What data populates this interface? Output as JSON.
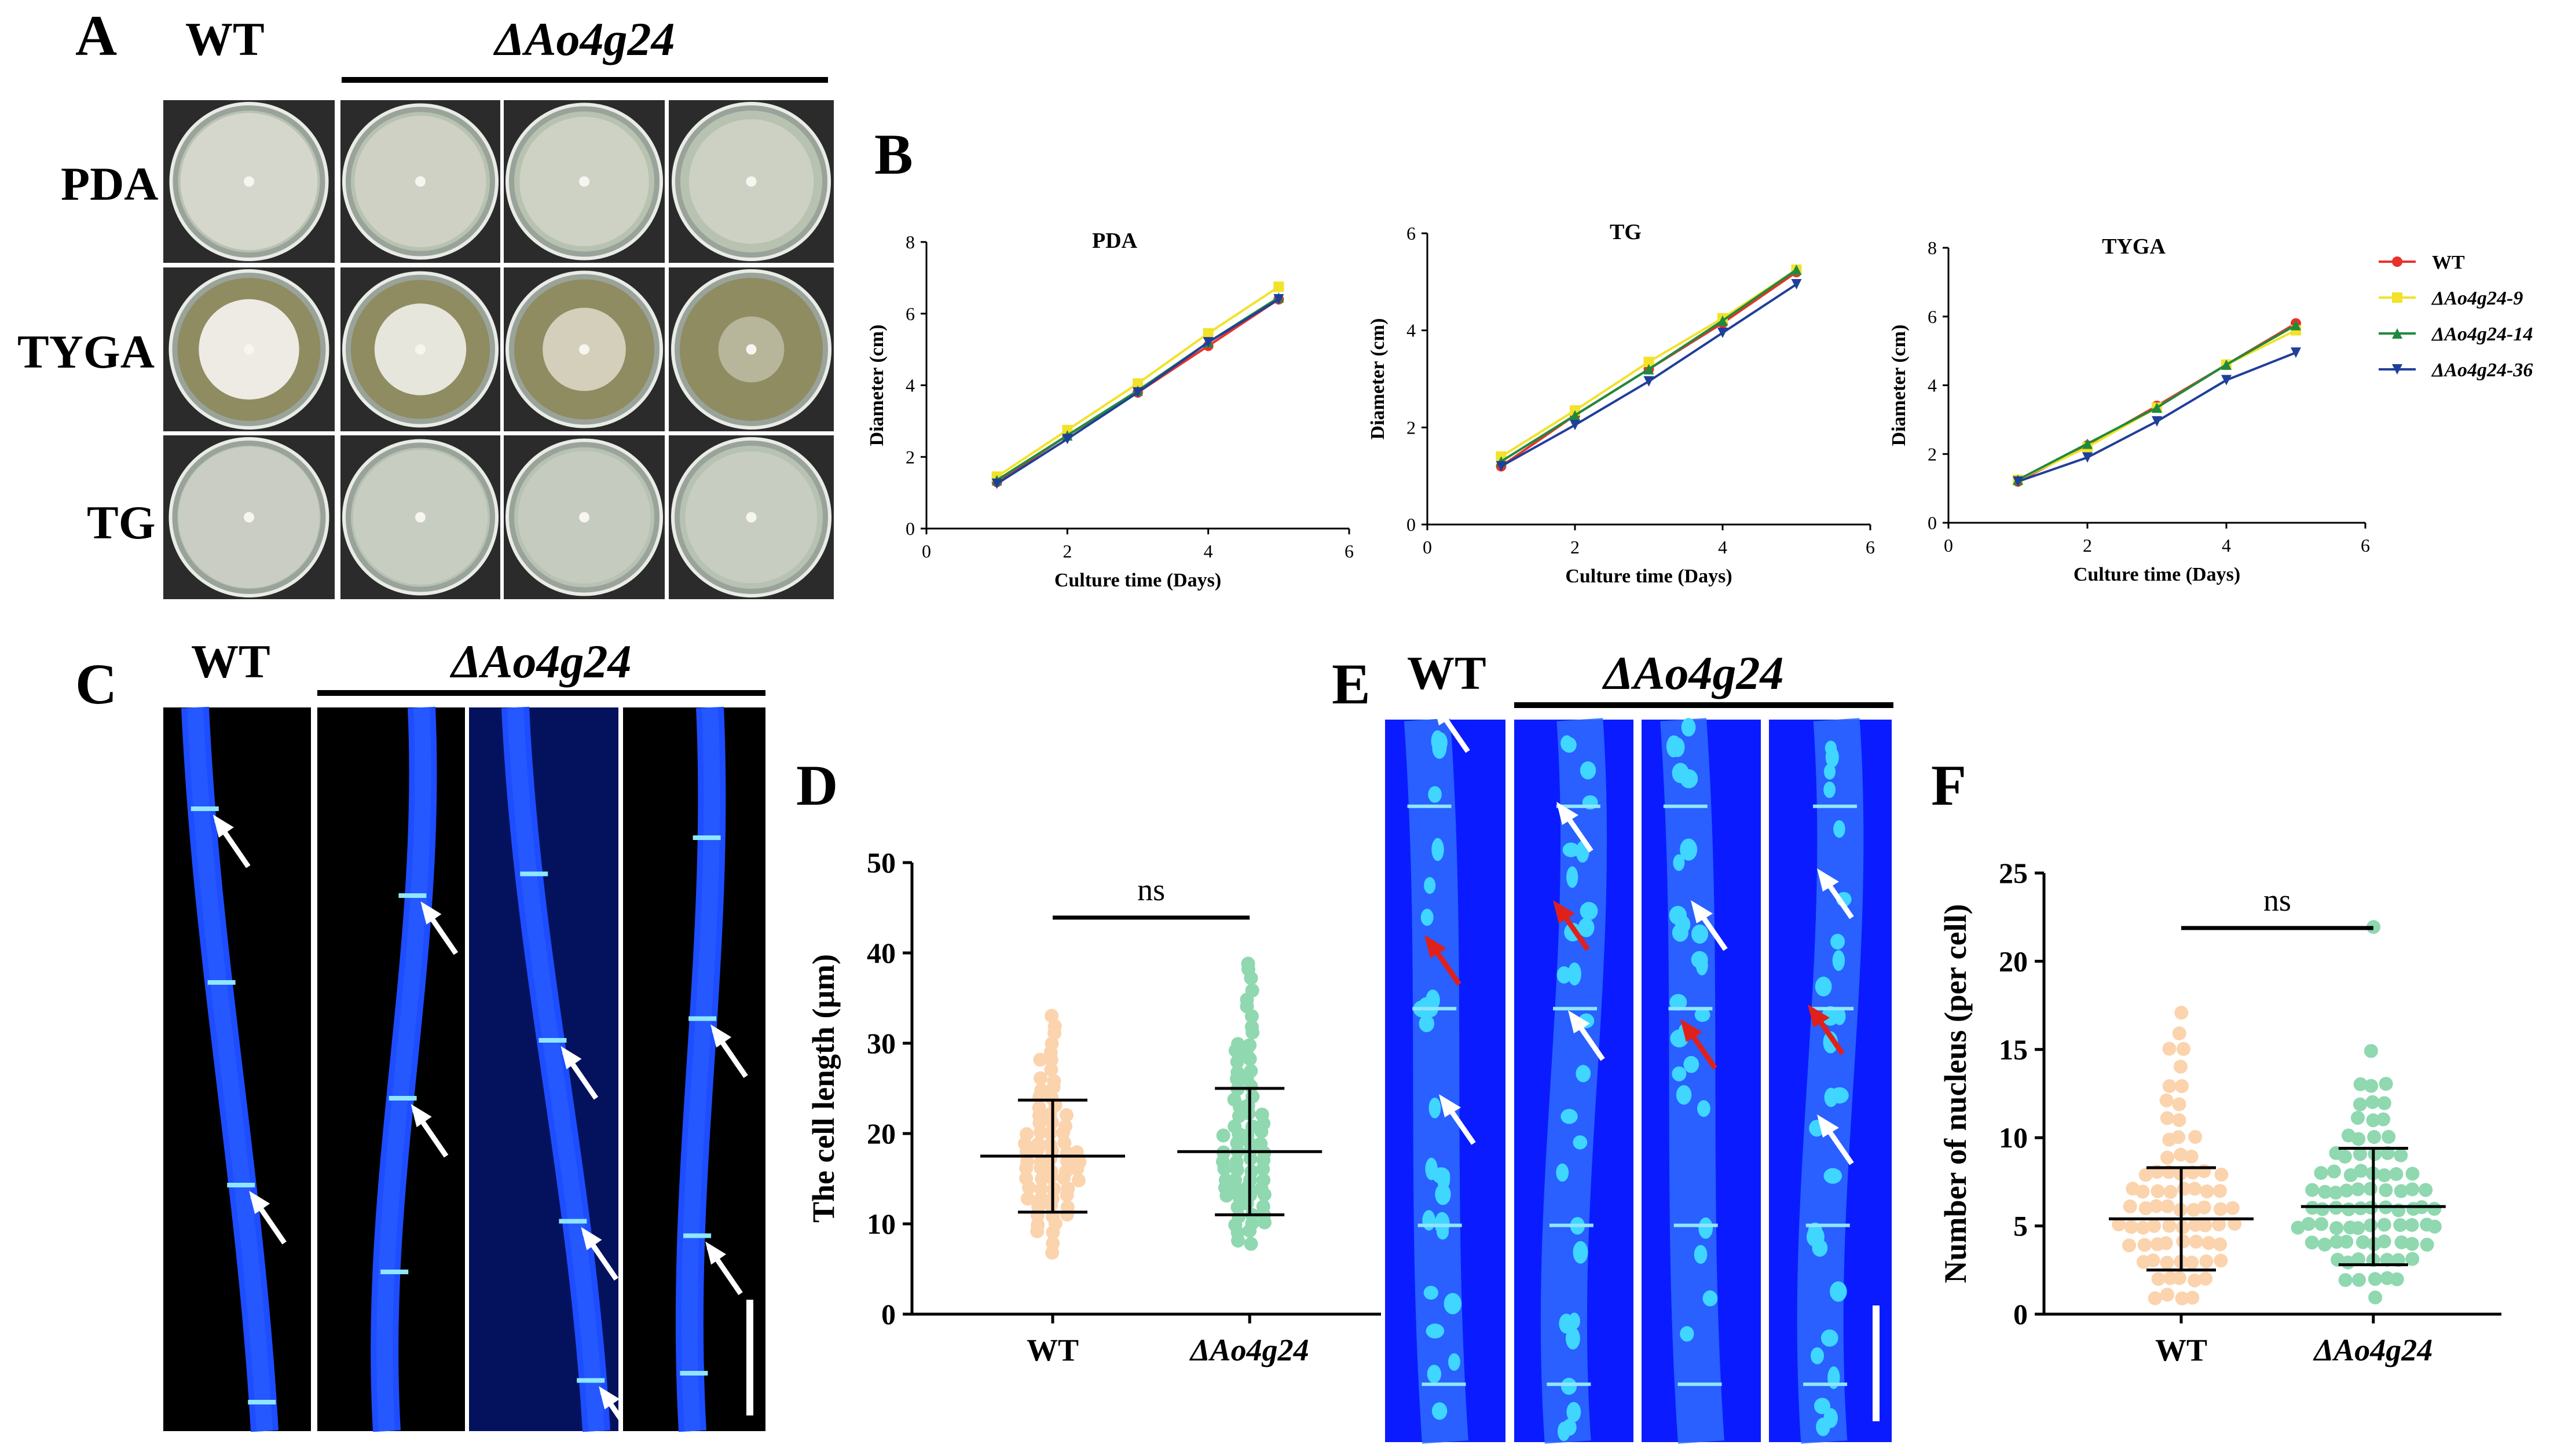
{
  "figure": {
    "panel_labels": {
      "A": "A",
      "B": "B",
      "C": "C",
      "D": "D",
      "E": "E",
      "F": "F"
    },
    "wt": "WT",
    "mutant": "ΔAo4g24",
    "media_rows": [
      "PDA",
      "TYGA",
      "TG"
    ]
  },
  "colors": {
    "plate_bg": "#2b2b2b",
    "hyphae_dark_bg": "#000000",
    "hyphae_blue": "#1d4dff",
    "nuclei_bg": "#0a1cff",
    "wt_points": "#fbd3ad",
    "mut_points": "#8fd8b0",
    "arrow_white": "#ffffff",
    "arrow_red": "#e0201b"
  },
  "chart_data": [
    {
      "id": "B-PDA",
      "type": "line",
      "title": "PDA",
      "xlabel": "Culture time (Days)",
      "ylabel": "Diameter (cm)",
      "xlim": [
        0,
        6
      ],
      "ylim": [
        0,
        8
      ],
      "xticks": [
        "0",
        "2",
        "4",
        "6"
      ],
      "yticks": [
        "0",
        "2",
        "4",
        "6",
        "8"
      ],
      "x": [
        1,
        2,
        3,
        4,
        5
      ],
      "series": [
        {
          "name": "WT",
          "color": "#e8312a",
          "marker": "circle",
          "values": [
            1.3,
            2.6,
            3.8,
            5.1,
            6.4
          ]
        },
        {
          "name": "ΔAo4g24-9",
          "color": "#f2e22a",
          "marker": "square",
          "values": [
            1.45,
            2.75,
            4.05,
            5.45,
            6.75
          ]
        },
        {
          "name": "ΔAo4g24-14",
          "color": "#1f8a3e",
          "marker": "triangle-up",
          "values": [
            1.35,
            2.6,
            3.85,
            5.2,
            6.45
          ]
        },
        {
          "name": "ΔAo4g24-36",
          "color": "#1f3f9a",
          "marker": "triangle-down",
          "values": [
            1.25,
            2.5,
            3.8,
            5.2,
            6.4
          ]
        }
      ]
    },
    {
      "id": "B-TG",
      "type": "line",
      "title": "TG",
      "xlabel": "Culture time (Days)",
      "ylabel": "Diameter (cm)",
      "xlim": [
        0,
        6
      ],
      "ylim": [
        0,
        6
      ],
      "xticks": [
        "0",
        "2",
        "4",
        "6"
      ],
      "yticks": [
        "0",
        "2",
        "4",
        "6"
      ],
      "x": [
        1,
        2,
        3,
        4,
        5
      ],
      "series": [
        {
          "name": "WT",
          "color": "#e8312a",
          "marker": "circle",
          "values": [
            1.2,
            2.25,
            3.2,
            4.15,
            5.2
          ]
        },
        {
          "name": "ΔAo4g24-9",
          "color": "#f2e22a",
          "marker": "square",
          "values": [
            1.4,
            2.35,
            3.35,
            4.25,
            5.25
          ]
        },
        {
          "name": "ΔAo4g24-14",
          "color": "#1f8a3e",
          "marker": "triangle-up",
          "values": [
            1.3,
            2.25,
            3.2,
            4.2,
            5.25
          ]
        },
        {
          "name": "ΔAo4g24-36",
          "color": "#1f3f9a",
          "marker": "triangle-down",
          "values": [
            1.2,
            2.05,
            2.95,
            3.95,
            4.95
          ]
        }
      ]
    },
    {
      "id": "B-TYGA",
      "type": "line",
      "title": "TYGA",
      "xlabel": "Culture time (Days)",
      "ylabel": "Diameter (cm)",
      "xlim": [
        0,
        6
      ],
      "ylim": [
        0,
        8
      ],
      "xticks": [
        "0",
        "2",
        "4",
        "6"
      ],
      "yticks": [
        "0",
        "2",
        "4",
        "6",
        "8"
      ],
      "x": [
        1,
        2,
        3,
        4,
        5
      ],
      "series": [
        {
          "name": "WT",
          "color": "#e8312a",
          "marker": "circle",
          "values": [
            1.2,
            2.25,
            3.4,
            4.6,
            5.8
          ]
        },
        {
          "name": "ΔAo4g24-9",
          "color": "#f2e22a",
          "marker": "square",
          "values": [
            1.25,
            2.2,
            3.35,
            4.6,
            5.6
          ]
        },
        {
          "name": "ΔAo4g24-14",
          "color": "#1f8a3e",
          "marker": "triangle-up",
          "values": [
            1.25,
            2.3,
            3.35,
            4.6,
            5.75
          ]
        },
        {
          "name": "ΔAo4g24-36",
          "color": "#1f3f9a",
          "marker": "triangle-down",
          "values": [
            1.2,
            1.9,
            2.95,
            4.15,
            4.95
          ]
        }
      ]
    },
    {
      "id": "D",
      "type": "scatter",
      "ylabel": "The cell length (μm)",
      "ylim": [
        0,
        50
      ],
      "yticks": [
        "0",
        "10",
        "20",
        "30",
        "40",
        "50"
      ],
      "categories": [
        "WT",
        "ΔAo4g24"
      ],
      "significance": "ns",
      "groups": [
        {
          "name": "WT",
          "color": "#fbd3ad",
          "mean": 17.5,
          "sd": 6.2,
          "n": 70,
          "values": [
            7,
            8,
            9,
            9,
            10,
            10,
            11,
            11,
            11,
            12,
            12,
            12,
            13,
            13,
            13,
            13,
            14,
            14,
            14,
            14,
            15,
            15,
            15,
            15,
            15,
            16,
            16,
            16,
            16,
            16,
            17,
            17,
            17,
            17,
            17,
            18,
            18,
            18,
            18,
            18,
            19,
            19,
            19,
            19,
            20,
            20,
            20,
            20,
            21,
            21,
            21,
            22,
            22,
            22,
            23,
            23,
            24,
            24,
            25,
            25,
            26,
            26,
            27,
            28,
            28,
            29,
            30,
            31,
            32,
            33
          ]
        },
        {
          "name": "ΔAo4g24",
          "color": "#8fd8b0",
          "mean": 18.0,
          "sd": 7.0,
          "n": 75,
          "values": [
            8,
            8,
            9,
            9,
            10,
            10,
            10,
            11,
            11,
            11,
            12,
            12,
            12,
            13,
            13,
            13,
            13,
            14,
            14,
            14,
            14,
            15,
            15,
            15,
            15,
            16,
            16,
            16,
            16,
            17,
            17,
            17,
            17,
            18,
            18,
            18,
            18,
            19,
            19,
            19,
            20,
            20,
            20,
            20,
            21,
            21,
            21,
            22,
            22,
            22,
            23,
            23,
            24,
            24,
            25,
            25,
            26,
            26,
            27,
            27,
            28,
            28,
            29,
            29,
            30,
            30,
            31,
            32,
            33,
            34,
            35,
            36,
            37,
            38,
            39
          ]
        }
      ]
    },
    {
      "id": "F",
      "type": "scatter",
      "ylabel": "Number of nucleus (per cell)",
      "ylim": [
        0,
        25
      ],
      "yticks": [
        "0",
        "5",
        "10",
        "15",
        "20",
        "25"
      ],
      "categories": [
        "WT",
        "ΔAo4g24"
      ],
      "significance": "ns",
      "groups": [
        {
          "name": "WT",
          "color": "#fbd3ad",
          "mean": 5.4,
          "sd": 2.9,
          "n": 75,
          "values": [
            1,
            1,
            1,
            2,
            2,
            2,
            2,
            2,
            3,
            3,
            3,
            3,
            3,
            3,
            3,
            4,
            4,
            4,
            4,
            4,
            4,
            4,
            4,
            5,
            5,
            5,
            5,
            5,
            5,
            5,
            5,
            5,
            5,
            6,
            6,
            6,
            6,
            6,
            6,
            6,
            6,
            6,
            7,
            7,
            7,
            7,
            7,
            7,
            7,
            7,
            8,
            8,
            8,
            8,
            8,
            8,
            8,
            9,
            9,
            9,
            10,
            10,
            10,
            11,
            11,
            12,
            12,
            13,
            13,
            14,
            15,
            15,
            16,
            17,
            1
          ]
        },
        {
          "name": "ΔAo4g24",
          "color": "#8fd8b0",
          "mean": 6.1,
          "sd": 3.3,
          "n": 85,
          "values": [
            1,
            2,
            2,
            2,
            2,
            3,
            3,
            3,
            3,
            3,
            3,
            4,
            4,
            4,
            4,
            4,
            4,
            4,
            4,
            4,
            5,
            5,
            5,
            5,
            5,
            5,
            5,
            5,
            5,
            5,
            5,
            6,
            6,
            6,
            6,
            6,
            6,
            6,
            6,
            6,
            6,
            7,
            7,
            7,
            7,
            7,
            7,
            7,
            7,
            7,
            8,
            8,
            8,
            8,
            8,
            8,
            8,
            9,
            9,
            9,
            9,
            9,
            10,
            10,
            10,
            10,
            11,
            11,
            11,
            12,
            12,
            12,
            13,
            13,
            13,
            15,
            22,
            2,
            3,
            4,
            5,
            6,
            7,
            8,
            9
          ]
        }
      ]
    }
  ]
}
